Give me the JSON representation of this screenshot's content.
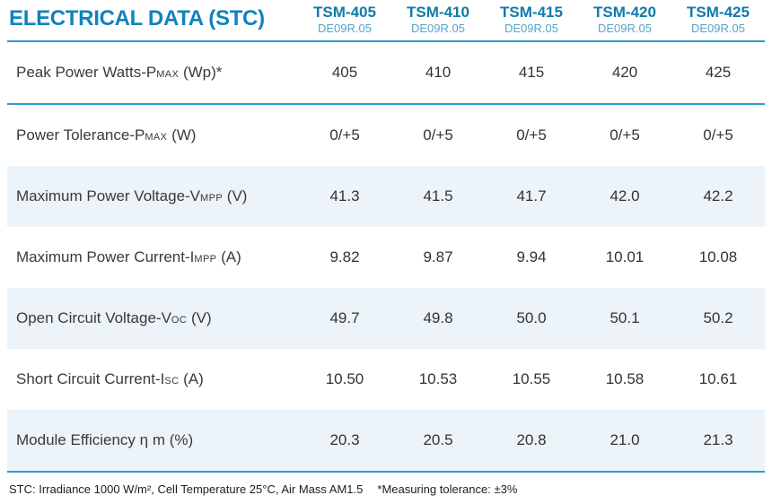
{
  "header": {
    "title": "ELECTRICAL DATA (STC)",
    "columns": [
      {
        "model": "TSM-405",
        "code": "DE09R.05"
      },
      {
        "model": "TSM-410",
        "code": "DE09R.05"
      },
      {
        "model": "TSM-415",
        "code": "DE09R.05"
      },
      {
        "model": "TSM-420",
        "code": "DE09R.05"
      },
      {
        "model": "TSM-425",
        "code": "DE09R.05"
      }
    ]
  },
  "table": {
    "rows": [
      {
        "label_main": "Peak Power Watts-P",
        "label_sub": "MAX",
        "label_suffix": " (Wp)*",
        "values": [
          "405",
          "410",
          "415",
          "420",
          "425"
        ],
        "shaded": false,
        "divider_below": true
      },
      {
        "label_main": "Power Tolerance-P",
        "label_sub": "MAX",
        "label_suffix": " (W)",
        "values": [
          "0/+5",
          "0/+5",
          "0/+5",
          "0/+5",
          "0/+5"
        ],
        "shaded": false,
        "divider_below": false
      },
      {
        "label_main": "Maximum Power Voltage-V",
        "label_sub": "MPP",
        "label_suffix": " (V)",
        "values": [
          "41.3",
          "41.5",
          "41.7",
          "42.0",
          "42.2"
        ],
        "shaded": true,
        "divider_below": false
      },
      {
        "label_main": "Maximum Power Current-I",
        "label_sub": "MPP",
        "label_suffix": " (A)",
        "values": [
          "9.82",
          "9.87",
          "9.94",
          "10.01",
          "10.08"
        ],
        "shaded": false,
        "divider_below": false
      },
      {
        "label_main": "Open Circuit Voltage-V",
        "label_sub": "OC",
        "label_suffix": " (V)",
        "values": [
          "49.7",
          "49.8",
          "50.0",
          "50.1",
          "50.2"
        ],
        "shaded": true,
        "divider_below": false
      },
      {
        "label_main": "Short Circuit Current-I",
        "label_sub": "SC",
        "label_suffix": " (A)",
        "values": [
          "10.50",
          "10.53",
          "10.55",
          "10.58",
          "10.61"
        ],
        "shaded": false,
        "divider_below": false
      },
      {
        "label_main": "Module Efficiency η m (%)",
        "label_sub": "",
        "label_suffix": "",
        "values": [
          "20.3",
          "20.5",
          "20.8",
          "21.0",
          "21.3"
        ],
        "shaded": true,
        "divider_below": false
      }
    ]
  },
  "footer": {
    "stc_note": "STC: Irradiance 1000 W/m², Cell Temperature 25°C, Air Mass AM1.5",
    "tolerance_note": "*Measuring tolerance: ±3%"
  },
  "colors": {
    "title_blue": "#1182bd",
    "model_blue": "#0e7bab",
    "code_blue": "#58a3c6",
    "line_blue": "#2e9ad2",
    "row_shade": "#ecf3f9",
    "text_dark": "#3a3a3a"
  }
}
